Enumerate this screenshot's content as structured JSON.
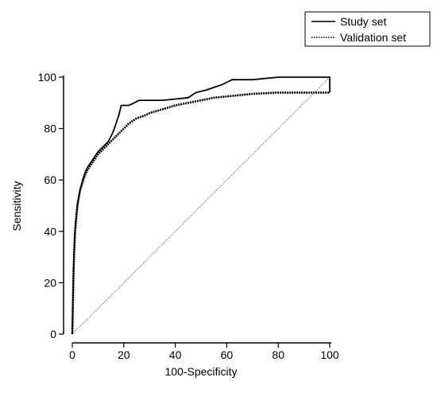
{
  "chart_data": {
    "type": "line",
    "title": "",
    "xlabel": "100-Specificity",
    "ylabel": "Sensitivity",
    "xlim": [
      0,
      100
    ],
    "ylim": [
      0,
      100
    ],
    "x_ticks": [
      0,
      20,
      40,
      60,
      80,
      100
    ],
    "y_ticks": [
      0,
      20,
      40,
      60,
      80,
      100
    ],
    "legend": {
      "placement": "top-right",
      "frame": true
    },
    "reference_line": {
      "from": [
        0,
        0
      ],
      "to": [
        100,
        100
      ],
      "color": "#c0504d",
      "style": "dotted"
    },
    "series": [
      {
        "name": "Study set",
        "style": "solid",
        "color": "#000000",
        "points": [
          [
            0,
            0
          ],
          [
            0.3,
            15
          ],
          [
            0.6,
            30
          ],
          [
            1,
            40
          ],
          [
            1.5,
            46
          ],
          [
            2,
            51
          ],
          [
            3,
            56
          ],
          [
            4,
            60
          ],
          [
            5,
            63
          ],
          [
            6,
            65
          ],
          [
            8,
            68
          ],
          [
            10,
            71
          ],
          [
            12,
            73
          ],
          [
            14,
            75
          ],
          [
            15,
            77
          ],
          [
            16,
            79
          ],
          [
            17,
            82
          ],
          [
            18,
            85
          ],
          [
            19,
            89
          ],
          [
            20,
            89
          ],
          [
            22,
            89
          ],
          [
            24,
            90
          ],
          [
            26,
            91
          ],
          [
            30,
            91
          ],
          [
            35,
            91
          ],
          [
            40,
            91.5
          ],
          [
            45,
            92
          ],
          [
            48,
            94
          ],
          [
            52,
            95
          ],
          [
            55,
            96
          ],
          [
            58,
            97
          ],
          [
            60,
            98
          ],
          [
            62,
            99
          ],
          [
            70,
            99
          ],
          [
            80,
            100
          ],
          [
            100,
            100
          ],
          [
            100,
            94
          ]
        ]
      },
      {
        "name": "Validation set",
        "style": "dotted",
        "color": "#000000",
        "points": [
          [
            0,
            0
          ],
          [
            0.2,
            10
          ],
          [
            0.5,
            25
          ],
          [
            1,
            38
          ],
          [
            1.5,
            45
          ],
          [
            2,
            50
          ],
          [
            3,
            56
          ],
          [
            4,
            59
          ],
          [
            5,
            62
          ],
          [
            6,
            64
          ],
          [
            8,
            67
          ],
          [
            10,
            70
          ],
          [
            12,
            72
          ],
          [
            14,
            74
          ],
          [
            16,
            76
          ],
          [
            18,
            78
          ],
          [
            20,
            80
          ],
          [
            22,
            82
          ],
          [
            25,
            84
          ],
          [
            28,
            85
          ],
          [
            30,
            86
          ],
          [
            35,
            87.5
          ],
          [
            40,
            89
          ],
          [
            45,
            90
          ],
          [
            50,
            91
          ],
          [
            55,
            92
          ],
          [
            60,
            92.5
          ],
          [
            65,
            93
          ],
          [
            70,
            93.5
          ],
          [
            80,
            94
          ],
          [
            90,
            94
          ],
          [
            100,
            94
          ]
        ]
      }
    ]
  }
}
